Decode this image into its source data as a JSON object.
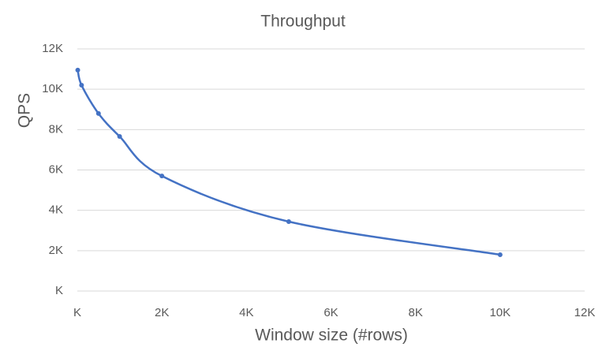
{
  "chart_data": {
    "type": "line",
    "title": "Throughput",
    "x_label": "Window size (#rows)",
    "y_label": "QPS",
    "x": [
      10,
      100,
      500,
      1000,
      2000,
      5000,
      10000
    ],
    "series": [
      {
        "name": "QPS",
        "color": "#4472c4",
        "values": [
          10950,
          10200,
          8800,
          7660,
          5700,
          3440,
          1800
        ]
      }
    ],
    "smooth": true,
    "grid": true,
    "xlim": [
      0,
      12000
    ],
    "xticks": [
      {
        "value": 0,
        "label": "K"
      },
      {
        "value": 2000,
        "label": "2K"
      },
      {
        "value": 4000,
        "label": "4K"
      },
      {
        "value": 6000,
        "label": "6K"
      },
      {
        "value": 8000,
        "label": "8K"
      },
      {
        "value": 10000,
        "label": "10K"
      },
      {
        "value": 12000,
        "label": "12K"
      }
    ],
    "ylim": [
      0,
      12000
    ],
    "yticks": [
      {
        "value": 0,
        "label": "K"
      },
      {
        "value": 2000,
        "label": "2K"
      },
      {
        "value": 4000,
        "label": "4K"
      },
      {
        "value": 6000,
        "label": "6K"
      },
      {
        "value": 8000,
        "label": "8K"
      },
      {
        "value": 10000,
        "label": "10K"
      },
      {
        "value": 12000,
        "label": "12K"
      }
    ]
  }
}
